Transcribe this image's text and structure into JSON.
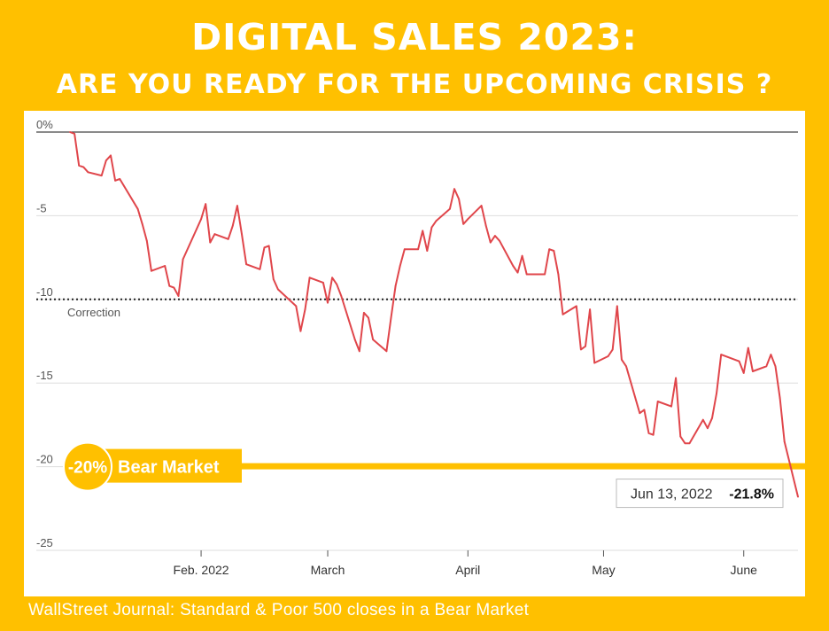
{
  "header": {
    "title": "DIGITAL SALES 2023:",
    "subtitle": "ARE YOU READY FOR THE UPCOMING CRISIS ?"
  },
  "footer": {
    "source": "WallStreet Journal: Standard & Poor 500 closes in a Bear Market"
  },
  "colors": {
    "background": "#FFC000",
    "line": "#E0464B",
    "zero_line": "#444444",
    "grid": "#dddddd",
    "tooltip_border": "#bbbbbb"
  },
  "chart_data": {
    "type": "line",
    "y_ticks": [
      {
        "value": 0,
        "label": "0%"
      },
      {
        "value": -5,
        "label": "-5"
      },
      {
        "value": -10,
        "label": "-10"
      },
      {
        "value": -15,
        "label": "-15"
      },
      {
        "value": -20,
        "label": "-20"
      },
      {
        "value": -25,
        "label": "-25"
      }
    ],
    "ylim": [
      -25,
      0
    ],
    "xlim": [
      "2022-01-03",
      "2022-06-13"
    ],
    "x_ticks": [
      {
        "date": "2022-02-01",
        "label": "Feb. 2022"
      },
      {
        "date": "2022-03-01",
        "label": "March"
      },
      {
        "date": "2022-04-01",
        "label": "April"
      },
      {
        "date": "2022-05-01",
        "label": "May"
      },
      {
        "date": "2022-06-01",
        "label": "June"
      }
    ],
    "grid": true,
    "series": [
      {
        "points": [
          [
            "2022-01-03",
            0.0
          ],
          [
            "2022-01-04",
            -0.1
          ],
          [
            "2022-01-05",
            -2.0
          ],
          [
            "2022-01-06",
            -2.1
          ],
          [
            "2022-01-07",
            -2.4
          ],
          [
            "2022-01-10",
            -2.6
          ],
          [
            "2022-01-11",
            -1.7
          ],
          [
            "2022-01-12",
            -1.4
          ],
          [
            "2022-01-13",
            -2.9
          ],
          [
            "2022-01-14",
            -2.8
          ],
          [
            "2022-01-18",
            -4.6
          ],
          [
            "2022-01-19",
            -5.5
          ],
          [
            "2022-01-20",
            -6.5
          ],
          [
            "2022-01-21",
            -8.3
          ],
          [
            "2022-01-24",
            -8.0
          ],
          [
            "2022-01-25",
            -9.2
          ],
          [
            "2022-01-26",
            -9.3
          ],
          [
            "2022-01-27",
            -9.8
          ],
          [
            "2022-01-28",
            -7.6
          ],
          [
            "2022-01-31",
            -5.8
          ],
          [
            "2022-02-01",
            -5.2
          ],
          [
            "2022-02-02",
            -4.3
          ],
          [
            "2022-02-03",
            -6.6
          ],
          [
            "2022-02-04",
            -6.1
          ],
          [
            "2022-02-07",
            -6.4
          ],
          [
            "2022-02-08",
            -5.6
          ],
          [
            "2022-02-09",
            -4.4
          ],
          [
            "2022-02-10",
            -6.1
          ],
          [
            "2022-02-11",
            -7.9
          ],
          [
            "2022-02-14",
            -8.2
          ],
          [
            "2022-02-15",
            -6.9
          ],
          [
            "2022-02-16",
            -6.8
          ],
          [
            "2022-02-17",
            -8.8
          ],
          [
            "2022-02-18",
            -9.4
          ],
          [
            "2022-02-22",
            -10.4
          ],
          [
            "2022-02-23",
            -11.9
          ],
          [
            "2022-02-24",
            -10.6
          ],
          [
            "2022-02-25",
            -8.7
          ],
          [
            "2022-02-28",
            -9.0
          ],
          [
            "2022-03-01",
            -10.2
          ],
          [
            "2022-03-02",
            -8.7
          ],
          [
            "2022-03-03",
            -9.1
          ],
          [
            "2022-03-04",
            -9.8
          ],
          [
            "2022-03-07",
            -12.4
          ],
          [
            "2022-03-08",
            -13.1
          ],
          [
            "2022-03-09",
            -10.8
          ],
          [
            "2022-03-10",
            -11.1
          ],
          [
            "2022-03-11",
            -12.4
          ],
          [
            "2022-03-14",
            -13.1
          ],
          [
            "2022-03-15",
            -11.1
          ],
          [
            "2022-03-16",
            -9.2
          ],
          [
            "2022-03-17",
            -8.0
          ],
          [
            "2022-03-18",
            -7.0
          ],
          [
            "2022-03-21",
            -7.0
          ],
          [
            "2022-03-22",
            -5.9
          ],
          [
            "2022-03-23",
            -7.1
          ],
          [
            "2022-03-24",
            -5.7
          ],
          [
            "2022-03-25",
            -5.3
          ],
          [
            "2022-03-28",
            -4.6
          ],
          [
            "2022-03-29",
            -3.4
          ],
          [
            "2022-03-30",
            -4.0
          ],
          [
            "2022-03-31",
            -5.5
          ],
          [
            "2022-04-01",
            -5.2
          ],
          [
            "2022-04-04",
            -4.4
          ],
          [
            "2022-04-05",
            -5.6
          ],
          [
            "2022-04-06",
            -6.6
          ],
          [
            "2022-04-07",
            -6.2
          ],
          [
            "2022-04-08",
            -6.5
          ],
          [
            "2022-04-11",
            -8.0
          ],
          [
            "2022-04-12",
            -8.4
          ],
          [
            "2022-04-13",
            -7.4
          ],
          [
            "2022-04-14",
            -8.5
          ],
          [
            "2022-04-18",
            -8.5
          ],
          [
            "2022-04-19",
            -7.0
          ],
          [
            "2022-04-20",
            -7.1
          ],
          [
            "2022-04-21",
            -8.5
          ],
          [
            "2022-04-22",
            -10.9
          ],
          [
            "2022-04-25",
            -10.4
          ],
          [
            "2022-04-26",
            -13.0
          ],
          [
            "2022-04-27",
            -12.8
          ],
          [
            "2022-04-28",
            -10.6
          ],
          [
            "2022-04-29",
            -13.8
          ],
          [
            "2022-05-02",
            -13.4
          ],
          [
            "2022-05-03",
            -13.0
          ],
          [
            "2022-05-04",
            -10.4
          ],
          [
            "2022-05-05",
            -13.6
          ],
          [
            "2022-05-06",
            -14.0
          ],
          [
            "2022-05-09",
            -16.8
          ],
          [
            "2022-05-10",
            -16.6
          ],
          [
            "2022-05-11",
            -18.0
          ],
          [
            "2022-05-12",
            -18.1
          ],
          [
            "2022-05-13",
            -16.1
          ],
          [
            "2022-05-16",
            -16.4
          ],
          [
            "2022-05-17",
            -14.7
          ],
          [
            "2022-05-18",
            -18.2
          ],
          [
            "2022-05-19",
            -18.6
          ],
          [
            "2022-05-20",
            -18.6
          ],
          [
            "2022-05-23",
            -17.2
          ],
          [
            "2022-05-24",
            -17.7
          ],
          [
            "2022-05-25",
            -17.1
          ],
          [
            "2022-05-26",
            -15.6
          ],
          [
            "2022-05-27",
            -13.3
          ],
          [
            "2022-05-31",
            -13.7
          ],
          [
            "2022-06-01",
            -14.4
          ],
          [
            "2022-06-02",
            -12.9
          ],
          [
            "2022-06-03",
            -14.3
          ],
          [
            "2022-06-06",
            -14.0
          ],
          [
            "2022-06-07",
            -13.3
          ],
          [
            "2022-06-08",
            -14.0
          ],
          [
            "2022-06-09",
            -15.9
          ],
          [
            "2022-06-10",
            -18.5
          ],
          [
            "2022-06-13",
            -21.8
          ]
        ]
      }
    ],
    "annotations": {
      "correction": {
        "value": -10,
        "label": "Correction"
      },
      "bear_market": {
        "value": -20,
        "badge": "-20%",
        "label": "Bear Market"
      },
      "tooltip": {
        "date_label": "Jun 13, 2022",
        "value_label": "-21.8%"
      }
    }
  }
}
